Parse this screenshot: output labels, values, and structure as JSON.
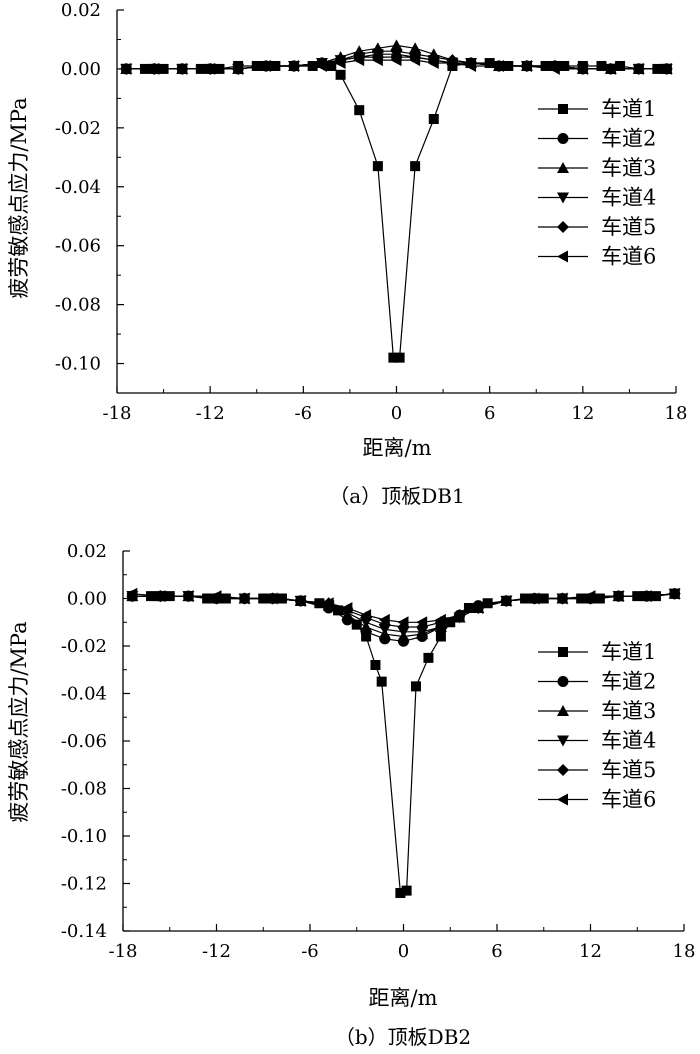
{
  "charts": [
    {
      "caption": "（a）顶板DB1",
      "xlabel": "距离/m",
      "ylabel": "疲劳敏感点应力/MPa",
      "x_ticks": [
        "-18",
        "-12",
        "-6",
        "0",
        "6",
        "12",
        "18"
      ],
      "y_ticks": [
        "0.02",
        "0.00",
        "-0.02",
        "-0.04",
        "-0.06",
        "-0.08",
        "-0.10"
      ],
      "legend": [
        "车道1",
        "车道2",
        "车道3",
        "车道4",
        "车道5",
        "车道6"
      ]
    },
    {
      "caption": "（b）顶板DB2",
      "xlabel": "距离/m",
      "ylabel": "疲劳敏感点应力/MPa",
      "x_ticks": [
        "-18",
        "-12",
        "-6",
        "0",
        "6",
        "12",
        "18"
      ],
      "y_ticks": [
        "0.02",
        "0.00",
        "-0.02",
        "-0.04",
        "-0.06",
        "-0.08",
        "-0.10",
        "-0.12",
        "-0.14"
      ],
      "legend": [
        "车道1",
        "车道2",
        "车道3",
        "车道4",
        "车道5",
        "车道6"
      ]
    }
  ],
  "chart_data": [
    {
      "type": "line",
      "caption": "（a）顶板DB1",
      "xlabel": "距离/m",
      "ylabel": "疲劳敏感点应力/MPa",
      "xlim": [
        -18,
        18
      ],
      "ylim": [
        -0.11,
        0.02
      ],
      "legend_position": "right",
      "series": [
        {
          "name": "车道1",
          "marker": "square",
          "x": [
            -17.4,
            -16.2,
            -15,
            -13.8,
            -12.6,
            -11.4,
            -10.2,
            -9,
            -7.8,
            -6.6,
            -5.4,
            -4.2,
            -3.6,
            -2.4,
            -1.2,
            -0.2,
            0.2,
            1.2,
            2.4,
            3.6,
            4.8,
            6,
            7.2,
            8.4,
            9.6,
            10.8,
            12,
            13.2,
            14.4,
            15.6,
            16.8,
            17.4
          ],
          "y": [
            0,
            0,
            0,
            0,
            0,
            0,
            0.001,
            0.001,
            0.001,
            0.001,
            0.001,
            0.001,
            -0.002,
            -0.014,
            -0.033,
            -0.098,
            -0.098,
            -0.033,
            -0.017,
            0.001,
            0.002,
            0.002,
            0.001,
            0.001,
            0.001,
            0.001,
            0.001,
            0.001,
            0.001,
            0,
            0,
            0
          ]
        },
        {
          "name": "车道2",
          "marker": "circle",
          "x": [
            -17.4,
            -15.6,
            -13.8,
            -12,
            -10.2,
            -8.4,
            -6.6,
            -4.8,
            -3.6,
            -2.4,
            -1.2,
            0,
            1.2,
            2.4,
            3.6,
            4.8,
            6.6,
            8.4,
            10.2,
            12,
            13.8,
            15.6,
            17.4
          ],
          "y": [
            0,
            0,
            0,
            0,
            0,
            0.001,
            0.001,
            0.002,
            0.003,
            0.004,
            0.004,
            0.004,
            0.004,
            0.003,
            0.002,
            0.002,
            0.001,
            0.001,
            0.001,
            0,
            0,
            0,
            0
          ]
        },
        {
          "name": "车道3",
          "marker": "triangle-up",
          "x": [
            -17.4,
            -15.6,
            -13.8,
            -12,
            -10.2,
            -8.4,
            -6.6,
            -4.8,
            -3.6,
            -2.4,
            -1.2,
            0,
            1.2,
            2.4,
            3.6,
            4.8,
            6.6,
            8.4,
            10.2,
            12,
            13.8,
            15.6,
            17.4
          ],
          "y": [
            0,
            0,
            0,
            0,
            0,
            0.001,
            0.001,
            0.002,
            0.004,
            0.006,
            0.007,
            0.008,
            0.007,
            0.005,
            0.003,
            0.002,
            0.001,
            0.001,
            0.001,
            0,
            0,
            0,
            0
          ]
        },
        {
          "name": "车道4",
          "marker": "triangle-down",
          "x": [
            -17.4,
            -15.6,
            -13.8,
            -12,
            -10.2,
            -8.4,
            -6.6,
            -4.8,
            -3.6,
            -2.4,
            -1.2,
            0,
            1.2,
            2.4,
            3.6,
            4.8,
            6.6,
            8.4,
            10.2,
            12,
            13.8,
            15.6,
            17.4
          ],
          "y": [
            0,
            0,
            0,
            0,
            0,
            0.001,
            0.001,
            0.002,
            0.003,
            0.004,
            0.005,
            0.005,
            0.004,
            0.003,
            0.002,
            0.002,
            0.001,
            0.001,
            0.001,
            0,
            0,
            0,
            0
          ]
        },
        {
          "name": "车道5",
          "marker": "diamond",
          "x": [
            -17.4,
            -15.6,
            -13.8,
            -12,
            -10.2,
            -8.4,
            -6.6,
            -4.8,
            -3.6,
            -2.4,
            -1.2,
            0,
            1.2,
            2.4,
            3.6,
            4.8,
            6.6,
            8.4,
            10.2,
            12,
            13.8,
            15.6,
            17.4
          ],
          "y": [
            0,
            0,
            0,
            0,
            0,
            0.001,
            0.001,
            0.002,
            0.003,
            0.005,
            0.006,
            0.006,
            0.005,
            0.004,
            0.003,
            0.002,
            0.001,
            0.001,
            0.001,
            0,
            0,
            0,
            0
          ]
        },
        {
          "name": "车道6",
          "marker": "triangle-left",
          "x": [
            -17.4,
            -15.6,
            -13.8,
            -12,
            -10.2,
            -8.4,
            -6.6,
            -4.8,
            -3.6,
            -2.4,
            -1.2,
            0,
            1.2,
            2.4,
            3.6,
            4.8,
            6.6,
            8.4,
            10.2,
            12,
            13.8,
            15.6,
            17.4
          ],
          "y": [
            0,
            0,
            0,
            0,
            0,
            0.001,
            0.001,
            0.001,
            0.002,
            0.003,
            0.003,
            0.003,
            0.003,
            0.002,
            0.002,
            0.001,
            0.001,
            0.001,
            0,
            0,
            0,
            0,
            0
          ]
        }
      ]
    },
    {
      "type": "line",
      "caption": "（b）顶板DB2",
      "xlabel": "距离/m",
      "ylabel": "疲劳敏感点应力/MPa",
      "xlim": [
        -18,
        18
      ],
      "ylim": [
        -0.14,
        0.02
      ],
      "legend_position": "right",
      "series": [
        {
          "name": "车道1",
          "marker": "square",
          "x": [
            -17.4,
            -16.2,
            -15,
            -13.8,
            -12.6,
            -11.4,
            -10.2,
            -9,
            -7.8,
            -6.6,
            -5.4,
            -4.2,
            -3.0,
            -2.4,
            -1.8,
            -1.4,
            -0.2,
            0.2,
            0.8,
            1.6,
            2.4,
            3.0,
            4.2,
            5.4,
            6.6,
            7.8,
            9,
            10.2,
            11.4,
            12.6,
            13.8,
            15,
            16.2,
            17.4
          ],
          "y": [
            0.001,
            0.001,
            0.001,
            0.001,
            0,
            0,
            0,
            0,
            0,
            -0.001,
            -0.002,
            -0.005,
            -0.011,
            -0.016,
            -0.028,
            -0.035,
            -0.124,
            -0.123,
            -0.037,
            -0.025,
            -0.016,
            -0.01,
            -0.004,
            -0.002,
            -0.001,
            0,
            0,
            0,
            0,
            0,
            0.001,
            0.001,
            0.001,
            0.002
          ]
        },
        {
          "name": "车道2",
          "marker": "circle",
          "x": [
            -17.4,
            -15.6,
            -13.8,
            -12,
            -10.2,
            -8.4,
            -6.6,
            -4.8,
            -3.6,
            -2.4,
            -1.2,
            0,
            1.2,
            2.4,
            3.6,
            4.8,
            6.6,
            8.4,
            10.2,
            12,
            13.8,
            15.6,
            17.4
          ],
          "y": [
            0.001,
            0.001,
            0.001,
            0,
            0,
            0,
            -0.001,
            -0.004,
            -0.009,
            -0.014,
            -0.017,
            -0.018,
            -0.016,
            -0.012,
            -0.007,
            -0.003,
            -0.001,
            0,
            0,
            0,
            0.001,
            0.001,
            0.002
          ]
        },
        {
          "name": "车道3",
          "marker": "triangle-up",
          "x": [
            -17.4,
            -15.6,
            -13.8,
            -12,
            -10.2,
            -8.4,
            -6.6,
            -4.8,
            -3.6,
            -2.4,
            -1.2,
            0,
            1.2,
            2.4,
            3.6,
            4.8,
            6.6,
            8.4,
            10.2,
            12,
            13.8,
            15.6,
            17.4
          ],
          "y": [
            0.001,
            0.001,
            0.001,
            0,
            0,
            0,
            -0.001,
            -0.003,
            -0.007,
            -0.012,
            -0.015,
            -0.016,
            -0.015,
            -0.012,
            -0.008,
            -0.004,
            -0.001,
            0,
            0,
            0,
            0.001,
            0.001,
            0.002
          ]
        },
        {
          "name": "车道4",
          "marker": "triangle-down",
          "x": [
            -17.4,
            -15.6,
            -13.8,
            -12,
            -10.2,
            -8.4,
            -6.6,
            -4.8,
            -3.6,
            -2.4,
            -1.2,
            0,
            1.2,
            2.4,
            3.6,
            4.8,
            6.6,
            8.4,
            10.2,
            12,
            13.8,
            15.6,
            17.4
          ],
          "y": [
            0.001,
            0.001,
            0.001,
            0,
            0,
            0,
            -0.001,
            -0.003,
            -0.006,
            -0.01,
            -0.013,
            -0.014,
            -0.014,
            -0.012,
            -0.008,
            -0.004,
            -0.001,
            0,
            0,
            0,
            0.001,
            0.001,
            0.002
          ]
        },
        {
          "name": "车道5",
          "marker": "diamond",
          "x": [
            -17.4,
            -15.6,
            -13.8,
            -12,
            -10.2,
            -8.4,
            -6.6,
            -4.8,
            -3.6,
            -2.4,
            -1.2,
            0,
            1.2,
            2.4,
            3.6,
            4.8,
            6.6,
            8.4,
            10.2,
            12,
            13.8,
            15.6,
            17.4
          ],
          "y": [
            0.001,
            0.001,
            0.001,
            0,
            0,
            0,
            -0.001,
            -0.002,
            -0.005,
            -0.008,
            -0.011,
            -0.012,
            -0.012,
            -0.01,
            -0.007,
            -0.004,
            -0.001,
            0,
            0,
            0,
            0.001,
            0.001,
            0.002
          ]
        },
        {
          "name": "车道6",
          "marker": "triangle-left",
          "x": [
            -17.4,
            -15.6,
            -13.8,
            -12,
            -10.2,
            -8.4,
            -6.6,
            -4.8,
            -3.6,
            -2.4,
            -1.2,
            0,
            1.2,
            2.4,
            3.6,
            4.8,
            6.6,
            8.4,
            10.2,
            12,
            13.8,
            15.6,
            17.4
          ],
          "y": [
            0.002,
            0.001,
            0.001,
            0.001,
            0,
            0,
            -0.001,
            -0.002,
            -0.004,
            -0.007,
            -0.009,
            -0.01,
            -0.01,
            -0.009,
            -0.007,
            -0.004,
            -0.001,
            0,
            0,
            0.001,
            0.001,
            0.001,
            0.002
          ]
        }
      ]
    }
  ]
}
